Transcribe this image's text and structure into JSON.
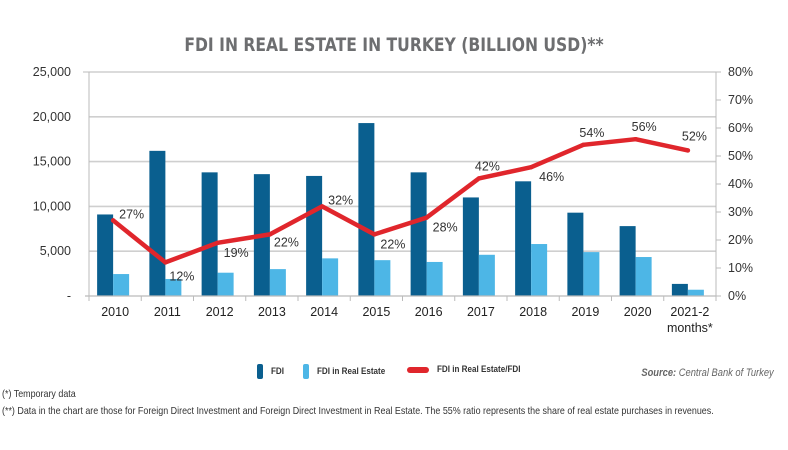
{
  "chart_data": {
    "type": "bar",
    "title": "FDI IN REAL ESTATE IN TURKEY (BILLION USD)**",
    "categories": [
      "2010",
      "2011",
      "2012",
      "2013",
      "2014",
      "2015",
      "2016",
      "2017",
      "2018",
      "2019",
      "2020",
      "2021-2|months*"
    ],
    "series": [
      {
        "name": "FDI",
        "type": "bar",
        "axis": "left",
        "color": "#0a5f8f",
        "values": [
          9100,
          16200,
          13800,
          13600,
          13400,
          19300,
          13800,
          11000,
          12800,
          9300,
          7800,
          1350
        ]
      },
      {
        "name": "FDI in Real Estate",
        "type": "bar",
        "axis": "left",
        "color": "#4db6e6",
        "values": [
          2450,
          1900,
          2600,
          3000,
          4200,
          4000,
          3800,
          4600,
          5800,
          4900,
          4350,
          700
        ]
      },
      {
        "name": "FDI in Real Estate/FDI",
        "type": "line",
        "axis": "right",
        "color": "#e0262c",
        "values": [
          27,
          12,
          19,
          22,
          32,
          22,
          28,
          42,
          46,
          54,
          56,
          52
        ],
        "labels": [
          "27%",
          "12%",
          "19%",
          "22%",
          "32%",
          "22%",
          "28%",
          "42%",
          "46%",
          "54%",
          "56%",
          "52%"
        ]
      }
    ],
    "y_left": {
      "ylim": [
        0,
        25000
      ],
      "ticks": [
        0,
        5000,
        10000,
        15000,
        20000,
        25000
      ],
      "tick_labels": [
        "-",
        "5,000",
        "10,000",
        "15,000",
        "20,000",
        "25,000"
      ]
    },
    "y_right": {
      "ylim": [
        0,
        80
      ],
      "ticks": [
        0,
        10,
        20,
        30,
        40,
        50,
        60,
        70,
        80
      ],
      "tick_labels": [
        "0%",
        "10%",
        "20%",
        "30%",
        "40%",
        "50%",
        "60%",
        "70%",
        "80%"
      ]
    },
    "xlabel": "",
    "ylabel": "",
    "grid": true,
    "legend_position": "bottom"
  },
  "legend": {
    "fdi": "FDI",
    "fdi_re": "FDI in Real Estate",
    "ratio": "FDI in Real Estate/FDI"
  },
  "source": {
    "label": "Source:",
    "text": " Central Bank of Turkey"
  },
  "notes": [
    "(*) Temporary data",
    "(**) Data in the chart are those for Foreign Direct Investment and Foreign Direct Investment in Real Estate. The 55% ratio represents the share of real estate purchases in revenues."
  ]
}
